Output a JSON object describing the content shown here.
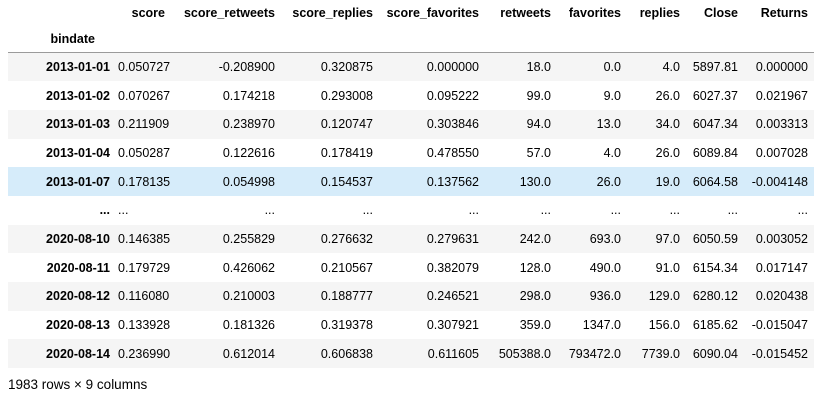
{
  "table": {
    "index_name": "bindate",
    "columns": [
      "score",
      "score_retweets",
      "score_replies",
      "score_favorites",
      "retweets",
      "favorites",
      "replies",
      "Close",
      "Returns"
    ],
    "rows": [
      {
        "index": "2013-01-01",
        "cells": [
          "0.050727",
          "-0.208900",
          "0.320875",
          "0.000000",
          "18.0",
          "0.0",
          "4.0",
          "5897.81",
          "0.000000"
        ]
      },
      {
        "index": "2013-01-02",
        "cells": [
          "0.070267",
          "0.174218",
          "0.293008",
          "0.095222",
          "99.0",
          "9.0",
          "26.0",
          "6027.37",
          "0.021967"
        ]
      },
      {
        "index": "2013-01-03",
        "cells": [
          "0.211909",
          "0.238970",
          "0.120747",
          "0.303846",
          "94.0",
          "13.0",
          "34.0",
          "6047.34",
          "0.003313"
        ]
      },
      {
        "index": "2013-01-04",
        "cells": [
          "0.050287",
          "0.122616",
          "0.178419",
          "0.478550",
          "57.0",
          "4.0",
          "26.0",
          "6089.84",
          "0.007028"
        ]
      },
      {
        "index": "2013-01-07",
        "cells": [
          "0.178135",
          "0.054998",
          "0.154537",
          "0.137562",
          "130.0",
          "26.0",
          "19.0",
          "6064.58",
          "-0.004148"
        ]
      },
      {
        "index": "...",
        "cells": [
          "...",
          "...",
          "...",
          "...",
          "...",
          "...",
          "...",
          "...",
          "..."
        ]
      },
      {
        "index": "2020-08-10",
        "cells": [
          "0.146385",
          "0.255829",
          "0.276632",
          "0.279631",
          "242.0",
          "693.0",
          "97.0",
          "6050.59",
          "0.003052"
        ]
      },
      {
        "index": "2020-08-11",
        "cells": [
          "0.179729",
          "0.426062",
          "0.210567",
          "0.382079",
          "128.0",
          "490.0",
          "91.0",
          "6154.34",
          "0.017147"
        ]
      },
      {
        "index": "2020-08-12",
        "cells": [
          "0.116080",
          "0.210003",
          "0.188777",
          "0.246521",
          "298.0",
          "936.0",
          "129.0",
          "6280.12",
          "0.020438"
        ]
      },
      {
        "index": "2020-08-13",
        "cells": [
          "0.133928",
          "0.181326",
          "0.319378",
          "0.307921",
          "359.0",
          "1347.0",
          "156.0",
          "6185.62",
          "-0.015047"
        ]
      },
      {
        "index": "2020-08-14",
        "cells": [
          "0.236990",
          "0.612014",
          "0.606838",
          "0.611605",
          "505388.0",
          "793472.0",
          "7739.0",
          "6090.04",
          "-0.015452"
        ]
      }
    ],
    "footer": "1983 rows × 9 columns"
  },
  "colors": {
    "row_stripe": "#f5f5f5",
    "row_highlight": "#d6ecfa",
    "header_border": "#9b9b9b"
  }
}
